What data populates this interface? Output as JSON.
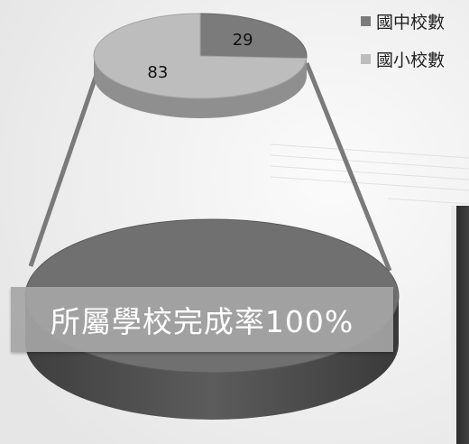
{
  "chart_data": {
    "type": "pie",
    "categories": [
      "國中校數",
      "國小校數"
    ],
    "values": [
      29,
      83
    ],
    "colors": [
      "#7b7b7b",
      "#bdbdbd"
    ],
    "data_labels": [
      "29",
      "83"
    ],
    "legend_position": "top-right",
    "style": "3d"
  },
  "banner": {
    "text": "所屬學校完成率100%"
  },
  "large_disc": {
    "top_color": "#6f6f6f",
    "side_color": "#4e4e4e"
  }
}
